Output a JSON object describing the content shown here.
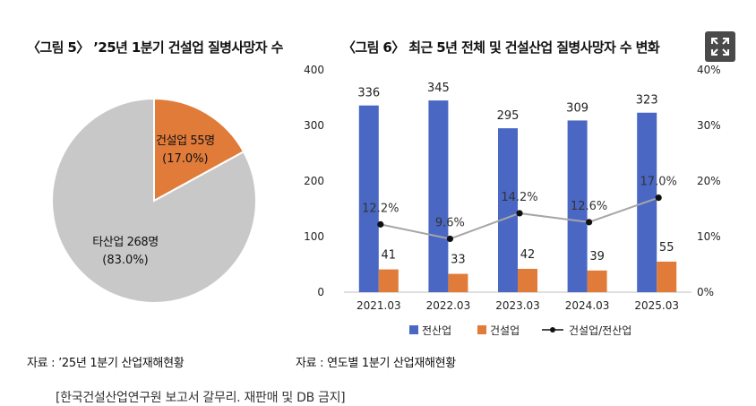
{
  "pie": {
    "title": "〈그림 5〉 ’25년 1분기 건설업 질병사망자 수",
    "source": "자료 : ’25년 1분기 산업재해현황"
  },
  "bar": {
    "title": "〈그림 6〉 최근 5년 전체 및 건설산업 질병사망자 수 변화",
    "source": "자료 : 연도별 1분기 산업재해현황"
  },
  "footer": "[한국건설산업연구원 보고서 갈무리. 재판매 및 DB 금지]",
  "expand_icon": "expand-icon",
  "chart_data": [
    {
      "type": "pie",
      "slices": [
        {
          "label": "건설업 55명",
          "value": 55,
          "percent_label": "(17.0%)",
          "color": "#e07b39"
        },
        {
          "label": "타산업 268명",
          "value": 268,
          "percent_label": "(83.0%)",
          "color": "#c8c8c8"
        }
      ]
    },
    {
      "type": "bar",
      "categories": [
        "2021.03",
        "2022.03",
        "2023.03",
        "2024.03",
        "2025.03"
      ],
      "series": [
        {
          "name": "전산업",
          "kind": "bar",
          "axis": "left",
          "color": "#4a67c4",
          "values": [
            336,
            345,
            295,
            309,
            323
          ],
          "labels": [
            "336",
            "345",
            "295",
            "309",
            "323"
          ]
        },
        {
          "name": "건설업",
          "kind": "bar",
          "axis": "left",
          "color": "#e07b39",
          "values": [
            41,
            33,
            42,
            39,
            55
          ],
          "labels": [
            "41",
            "33",
            "42",
            "39",
            "55"
          ]
        },
        {
          "name": "건설업/전산업",
          "kind": "line",
          "axis": "right",
          "color": "#a6a6a6",
          "marker_color": "#111111",
          "values": [
            12.2,
            9.6,
            14.2,
            12.6,
            17.0
          ],
          "labels": [
            "12.2%",
            "9.6%",
            "14.2%",
            "12.6%",
            "17.0%"
          ]
        }
      ],
      "y_left": {
        "min": 0,
        "max": 400,
        "ticks": [
          "0",
          "100",
          "200",
          "300",
          "400"
        ]
      },
      "y_right": {
        "min": 0,
        "max": 40,
        "ticks": [
          "0%",
          "10%",
          "20%",
          "30%",
          "40%"
        ]
      },
      "legend_position": "bottom",
      "grid": false
    }
  ]
}
